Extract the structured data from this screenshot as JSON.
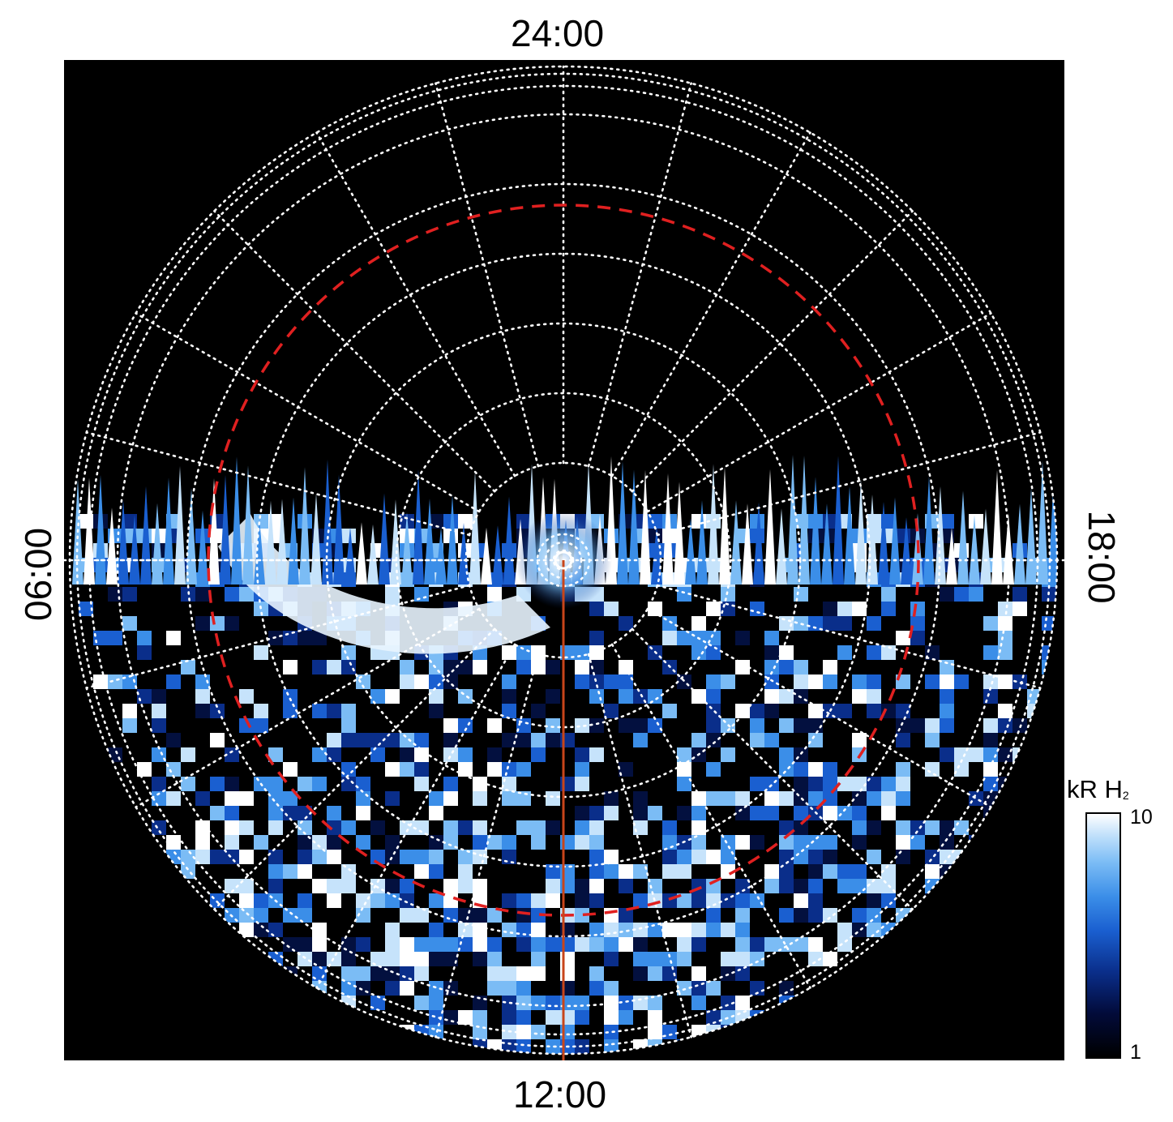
{
  "labels": {
    "top": "24:00",
    "bottom": "12:00",
    "left": "06:00",
    "right": "18:00"
  },
  "colorbar": {
    "title_main": "kR H",
    "title_sub": "2",
    "max_label": "10",
    "min_label": "1"
  },
  "colors": {
    "background": "#000000",
    "grid": "#ffffff",
    "reference_circle": "#e02020",
    "meridian_line": "#c8451a"
  }
}
